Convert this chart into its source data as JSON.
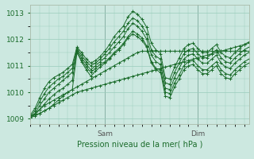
{
  "xlabel": "Pression niveau de la mer( hPa )",
  "bg_color": "#cce8e0",
  "grid_color": "#99ccbb",
  "line_color": "#1a6b2a",
  "ylim": [
    1008.8,
    1013.3
  ],
  "xlim": [
    0,
    47
  ],
  "yticks": [
    1009,
    1010,
    1011,
    1012,
    1013
  ],
  "xtick_labels": [
    [
      "Sam",
      16
    ],
    [
      "Dim",
      36
    ]
  ],
  "vlines": [
    16,
    36
  ],
  "series": [
    [
      1009.1,
      1009.15,
      1009.2,
      1009.3,
      1009.4,
      1009.5,
      1009.6,
      1009.7,
      1009.8,
      1009.9,
      1010.0,
      1010.05,
      1010.1,
      1010.15,
      1010.2,
      1010.25,
      1010.3,
      1010.35,
      1010.4,
      1010.45,
      1010.5,
      1010.55,
      1010.6,
      1010.65,
      1010.7,
      1010.75,
      1010.8,
      1010.85,
      1010.9,
      1010.95,
      1011.0,
      1011.05,
      1011.1,
      1011.15,
      1011.2,
      1011.25,
      1011.3,
      1011.35,
      1011.4,
      1011.45,
      1011.5,
      1011.55,
      1011.6,
      1011.65,
      1011.7,
      1011.75,
      1011.8,
      1011.85
    ],
    [
      1009.1,
      1009.2,
      1009.35,
      1009.5,
      1009.6,
      1009.7,
      1009.8,
      1009.9,
      1010.0,
      1010.1,
      1010.2,
      1010.3,
      1010.4,
      1010.5,
      1010.6,
      1010.7,
      1010.8,
      1010.9,
      1011.0,
      1011.1,
      1011.2,
      1011.3,
      1011.4,
      1011.5,
      1011.55,
      1011.55,
      1011.55,
      1011.55,
      1011.55,
      1011.55,
      1011.55,
      1011.55,
      1011.55,
      1011.55,
      1011.55,
      1011.55,
      1011.55,
      1011.55,
      1011.55,
      1011.55,
      1011.55,
      1011.55,
      1011.55,
      1011.55,
      1011.55,
      1011.55,
      1011.55,
      1011.55
    ],
    [
      1009.05,
      1009.1,
      1009.2,
      1009.3,
      1009.4,
      1009.55,
      1009.7,
      1009.85,
      1010.0,
      1010.1,
      1011.5,
      1011.15,
      1010.85,
      1010.6,
      1010.8,
      1010.95,
      1011.1,
      1011.25,
      1011.45,
      1011.6,
      1011.8,
      1012.05,
      1012.2,
      1012.1,
      1011.95,
      1011.7,
      1011.1,
      1010.85,
      1010.75,
      1009.85,
      1009.8,
      1010.2,
      1010.5,
      1010.85,
      1011.0,
      1011.05,
      1010.85,
      1010.7,
      1010.7,
      1010.85,
      1011.0,
      1010.7,
      1010.55,
      1010.5,
      1010.7,
      1010.85,
      1011.0,
      1011.1
    ],
    [
      1009.05,
      1009.15,
      1009.35,
      1009.55,
      1009.75,
      1009.9,
      1010.05,
      1010.15,
      1010.3,
      1010.45,
      1011.55,
      1011.2,
      1010.95,
      1010.75,
      1010.9,
      1011.05,
      1011.15,
      1011.3,
      1011.5,
      1011.65,
      1011.85,
      1012.1,
      1012.3,
      1012.2,
      1012.05,
      1011.75,
      1011.15,
      1010.9,
      1010.85,
      1010.0,
      1009.95,
      1010.35,
      1010.65,
      1011.0,
      1011.15,
      1011.2,
      1011.0,
      1010.85,
      1010.85,
      1011.0,
      1011.15,
      1010.85,
      1010.7,
      1010.65,
      1010.85,
      1011.0,
      1011.15,
      1011.25
    ],
    [
      1009.05,
      1009.2,
      1009.5,
      1009.75,
      1010.0,
      1010.15,
      1010.3,
      1010.45,
      1010.6,
      1010.75,
      1011.6,
      1011.3,
      1011.05,
      1010.85,
      1011.0,
      1011.15,
      1011.3,
      1011.5,
      1011.7,
      1011.9,
      1012.1,
      1012.4,
      1012.6,
      1012.5,
      1012.3,
      1012.0,
      1011.4,
      1011.15,
      1011.05,
      1010.15,
      1010.1,
      1010.55,
      1010.9,
      1011.25,
      1011.4,
      1011.45,
      1011.25,
      1011.1,
      1011.1,
      1011.25,
      1011.4,
      1011.1,
      1010.95,
      1010.9,
      1011.1,
      1011.25,
      1011.4,
      1011.5
    ],
    [
      1009.1,
      1009.3,
      1009.65,
      1009.95,
      1010.2,
      1010.35,
      1010.5,
      1010.6,
      1010.75,
      1010.9,
      1011.65,
      1011.4,
      1011.15,
      1011.0,
      1011.1,
      1011.25,
      1011.45,
      1011.65,
      1011.9,
      1012.1,
      1012.3,
      1012.6,
      1012.8,
      1012.7,
      1012.5,
      1012.2,
      1011.6,
      1011.35,
      1011.25,
      1010.35,
      1010.3,
      1010.75,
      1011.1,
      1011.45,
      1011.6,
      1011.65,
      1011.45,
      1011.3,
      1011.3,
      1011.45,
      1011.6,
      1011.3,
      1011.15,
      1011.1,
      1011.3,
      1011.45,
      1011.6,
      1011.7
    ],
    [
      1009.15,
      1009.4,
      1009.8,
      1010.15,
      1010.4,
      1010.55,
      1010.65,
      1010.75,
      1010.9,
      1011.05,
      1011.7,
      1011.5,
      1011.25,
      1011.1,
      1011.2,
      1011.35,
      1011.55,
      1011.8,
      1012.1,
      1012.3,
      1012.5,
      1012.85,
      1013.05,
      1012.95,
      1012.75,
      1012.45,
      1011.85,
      1011.6,
      1011.45,
      1010.55,
      1010.5,
      1010.95,
      1011.3,
      1011.65,
      1011.8,
      1011.85,
      1011.65,
      1011.5,
      1011.5,
      1011.65,
      1011.8,
      1011.5,
      1011.35,
      1011.3,
      1011.5,
      1011.65,
      1011.8,
      1011.9
    ]
  ]
}
